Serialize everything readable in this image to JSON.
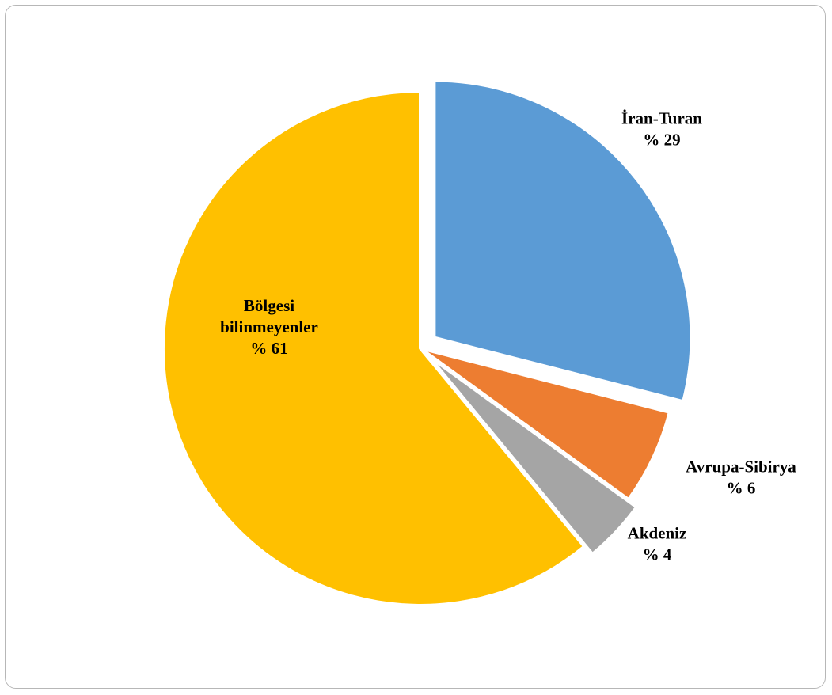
{
  "chart_data": {
    "type": "pie",
    "categories": [
      "İran-Turan",
      "Avrupa-Sibirya",
      "Akdeniz",
      "Bölgesi bilinmeyenler"
    ],
    "values": [
      29,
      6,
      4,
      61
    ],
    "labels": [
      {
        "lines": [
          "İran-Turan",
          "% 29"
        ]
      },
      {
        "lines": [
          "Avrupa-Sibirya",
          "% 6"
        ]
      },
      {
        "lines": [
          "Akdeniz",
          "% 4"
        ]
      },
      {
        "lines": [
          "Bölgesi",
          "bilinmeyenler",
          "% 61"
        ]
      }
    ],
    "colors": [
      "#5B9BD5",
      "#ED7D31",
      "#A5A5A5",
      "#FFC000"
    ],
    "start_angle": "12 o'clock",
    "direction": "clockwise",
    "exploded_slices": [
      "İran-Turan",
      "Akdeniz"
    ],
    "legend": "none"
  }
}
